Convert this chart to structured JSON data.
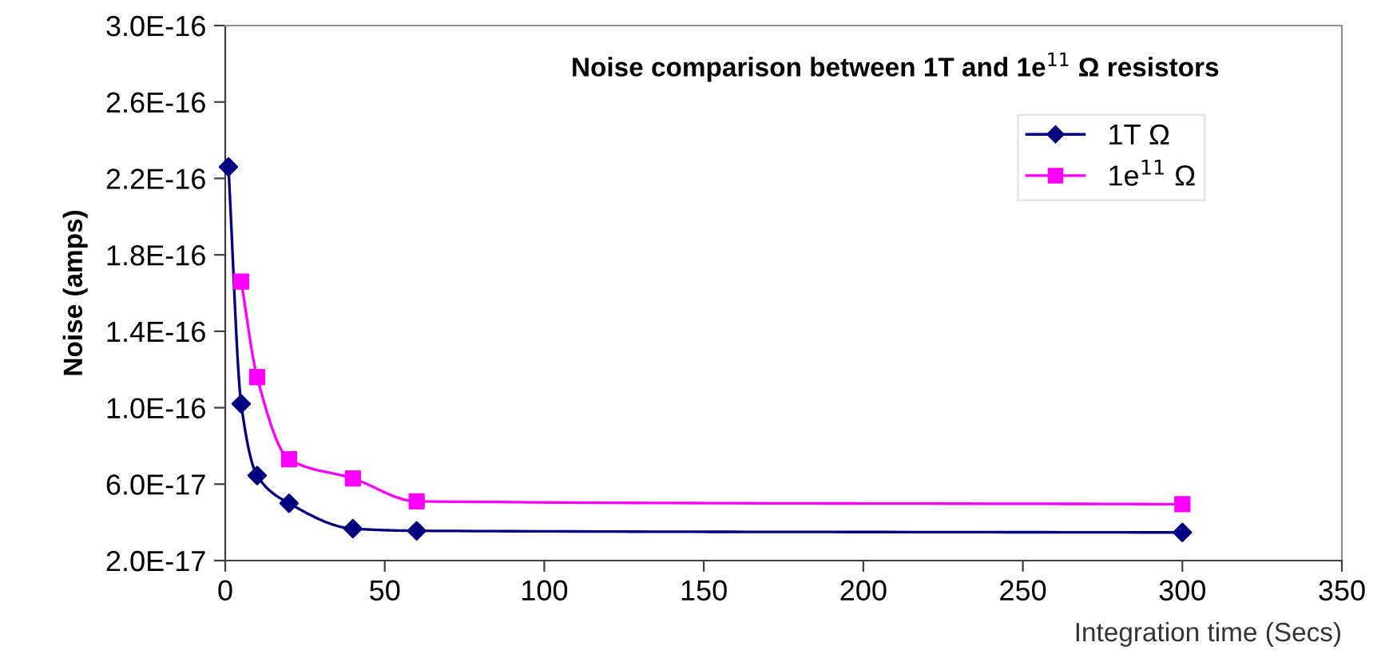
{
  "chart_data": {
    "type": "line",
    "title": "Noise comparison between 1T and 1e$^{11}$ Ω resistors",
    "xlabel": "Integration time (Secs)",
    "ylabel": "Noise (amps)",
    "x": [
      1,
      5,
      10,
      20,
      40,
      60,
      300
    ],
    "series": [
      {
        "name": "1T Ω",
        "color": "#000080",
        "marker": "diamond",
        "values": [
          2.26e-16,
          1.02e-16,
          6.45e-17,
          5e-17,
          3.67e-17,
          3.56e-17,
          3.47e-17
        ]
      },
      {
        "name": "1e$^{11}$ Ω",
        "color": "#ff00ff",
        "marker": "square",
        "values": [
          null,
          1.66e-16,
          1.16e-16,
          7.3e-17,
          6.3e-17,
          5.1e-17,
          4.95e-17
        ]
      }
    ],
    "xlim": [
      0,
      350
    ],
    "xticks": [
      0,
      50,
      100,
      150,
      200,
      250,
      300,
      350
    ],
    "ylim": [
      2e-17,
      3e-16
    ],
    "yticks": [
      {
        "value": 2e-17,
        "label": "2.0E-17"
      },
      {
        "value": 6e-17,
        "label": "6.0E-17"
      },
      {
        "value": 1e-16,
        "label": "1.0E-16"
      },
      {
        "value": 1.4e-16,
        "label": "1.4E-16"
      },
      {
        "value": 1.8e-16,
        "label": "1.8E-16"
      },
      {
        "value": 2.2e-16,
        "label": "2.2E-16"
      },
      {
        "value": 2.6e-16,
        "label": "2.6E-16"
      },
      {
        "value": 3e-16,
        "label": "3.0E-16"
      }
    ],
    "grid": false,
    "legend": "top right",
    "line_style": "solid"
  }
}
